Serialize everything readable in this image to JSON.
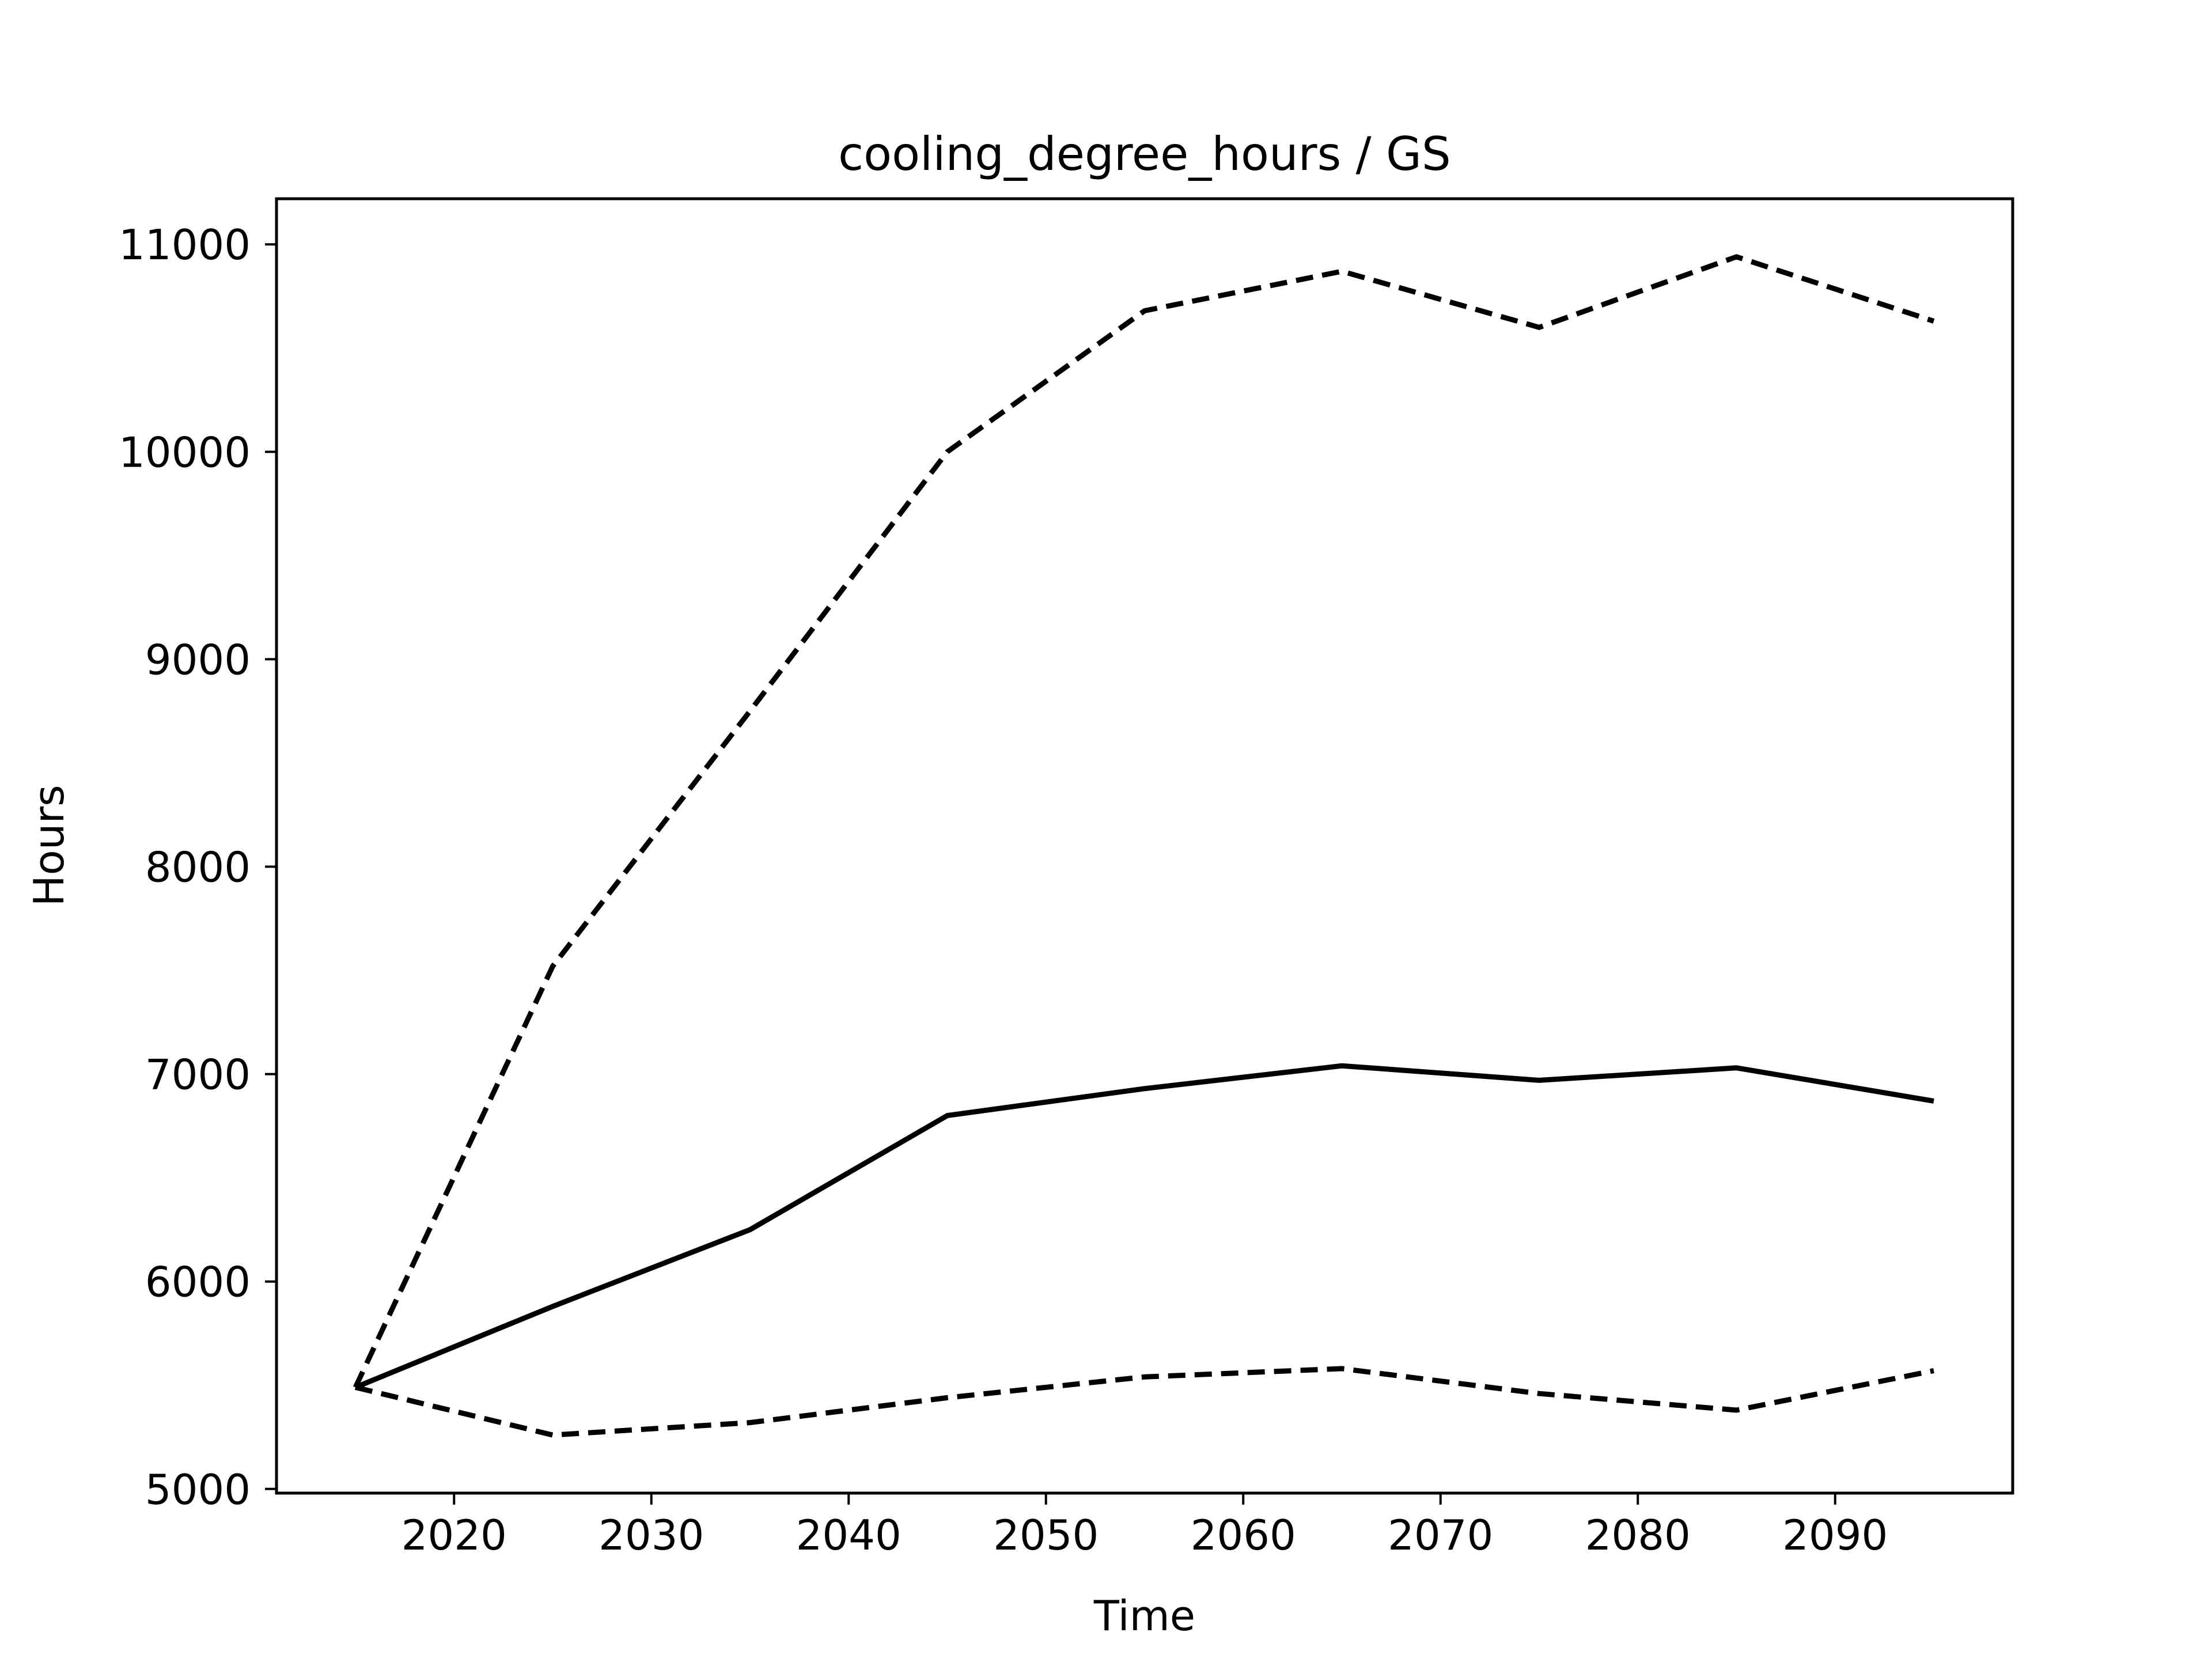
{
  "chart_data": {
    "type": "line",
    "title": "cooling_degree_hours / GS",
    "xlabel": "Time",
    "ylabel": "Hours",
    "xlim": [
      2011,
      2099
    ],
    "ylim": [
      4980,
      11220
    ],
    "xticks": [
      2020,
      2030,
      2040,
      2050,
      2060,
      2070,
      2080,
      2090
    ],
    "yticks": [
      5000,
      6000,
      7000,
      8000,
      9000,
      10000,
      11000
    ],
    "grid": false,
    "x": [
      2015,
      2025,
      2035,
      2045,
      2055,
      2065,
      2075,
      2085,
      2095
    ],
    "series": [
      {
        "style": "solid",
        "values": [
          5490,
          5880,
          6250,
          6800,
          6930,
          7040,
          6970,
          7030,
          6870
        ]
      },
      {
        "style": "dashed",
        "values": [
          5490,
          7520,
          8750,
          10000,
          10680,
          10870,
          10600,
          10940,
          10630
        ]
      },
      {
        "style": "dashed",
        "values": [
          5490,
          5260,
          5320,
          5440,
          5540,
          5580,
          5460,
          5380,
          5570
        ]
      }
    ],
    "colors": {
      "line": "#000000",
      "frame": "#000000",
      "background": "#ffffff"
    }
  }
}
